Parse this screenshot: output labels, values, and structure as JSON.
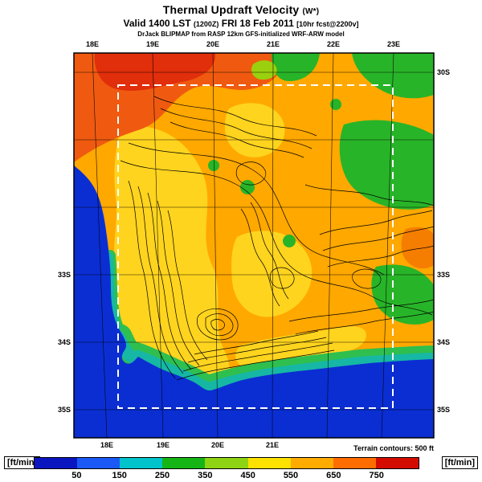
{
  "title": {
    "main": "Thermal Updraft Velocity",
    "param": "(W*)"
  },
  "valid_line": {
    "valid": "Valid 1400 LST",
    "zulu": "(1200Z)",
    "date": "FRI 18 Feb 2011",
    "fcst": "[10hr fcst@2200v]"
  },
  "model_line": "DrJack BLIPMAP from RASP 12km GFS-initialized WRF-ARW model",
  "axes": {
    "top_lon": [
      "18E",
      "19E",
      "20E",
      "21E",
      "22E",
      "23E"
    ],
    "bottom_lon": [
      "18E",
      "19E",
      "20E",
      "21E"
    ],
    "left_lat": [
      "33S",
      "34S",
      "35S"
    ],
    "right_lat": [
      "30S",
      "33S",
      "34S",
      "35S"
    ]
  },
  "colorbar": {
    "unit_left": "[ft/min]",
    "unit_right": "[ft/min]",
    "tick_labels": [
      "50",
      "150",
      "250",
      "350",
      "450",
      "550",
      "650",
      "750"
    ],
    "segment_colors": [
      "#0a17c1",
      "#1b59f7",
      "#00c3cb",
      "#16b516",
      "#8fd414",
      "#ffe100",
      "#ffab00",
      "#ff6d00",
      "#d40c00"
    ]
  },
  "footnote": "Terrain contours: 500 ft",
  "map_colors": {
    "ocean": "#0b2ed3",
    "land": "#ffa800",
    "yellow": "#ffd41e",
    "orange_red": "#ef5a10",
    "red": "#e12e0b",
    "dark_orange": "#f57d00",
    "green": "#28b428",
    "light_green": "#9ad00e",
    "coast_green": "#2fbf4f",
    "coast_teal": "#16b7a4",
    "contour": "#000000",
    "grid": "#000000",
    "domain_box": "#ffffff"
  },
  "chart_data": {
    "type": "heatmap",
    "title": "Thermal Updraft Velocity (W*)",
    "units": "ft/min",
    "colorbar_ticks": [
      50,
      150,
      250,
      350,
      450,
      550,
      650,
      750
    ],
    "terrain_contour_interval_ft": 500,
    "lon_labels": [
      "18E",
      "19E",
      "20E",
      "21E",
      "22E",
      "23E"
    ],
    "lat_labels": [
      "30S",
      "33S",
      "34S",
      "35S"
    ],
    "legend_position": "bottom"
  }
}
